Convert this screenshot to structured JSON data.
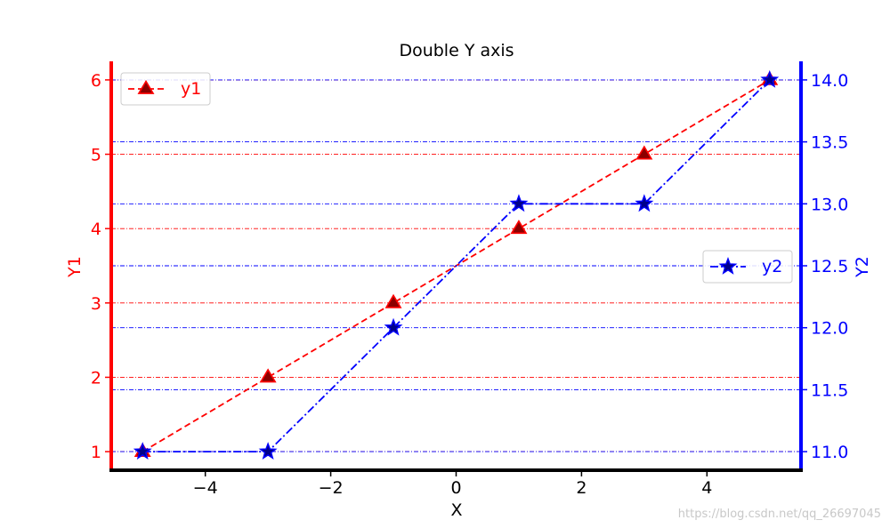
{
  "chart_data": {
    "type": "line",
    "title": "Double Y axis",
    "xlabel": "X",
    "ylabel_left": "Y1",
    "ylabel_right": "Y2",
    "xlim": [
      -5.5,
      5.5
    ],
    "ylim_left": [
      0.75,
      6.25
    ],
    "ylim_right": [
      10.85,
      14.15
    ],
    "x_ticks": [
      -4,
      -2,
      0,
      2,
      4
    ],
    "x_tick_labels": [
      "−4",
      "−2",
      "0",
      "2",
      "4"
    ],
    "y_left_ticks": [
      1,
      2,
      3,
      4,
      5,
      6
    ],
    "y_left_tick_labels": [
      "1",
      "2",
      "3",
      "4",
      "5",
      "6"
    ],
    "y_right_ticks": [
      11.0,
      11.5,
      12.0,
      12.5,
      13.0,
      13.5,
      14.0
    ],
    "y_right_tick_labels": [
      "11.0",
      "11.5",
      "12.0",
      "12.5",
      "13.0",
      "13.5",
      "14.0"
    ],
    "grid": true,
    "x": [
      -5,
      -3,
      -1,
      1,
      3,
      5
    ],
    "series": [
      {
        "name": "y1",
        "axis": "left",
        "values": [
          1,
          2,
          3,
          4,
          5,
          6
        ],
        "color": "#ff0000",
        "marker": "triangle",
        "marker_fill": "#8b0000",
        "line_style": "dashed",
        "legend_position": "upper-left"
      },
      {
        "name": "y2",
        "axis": "right",
        "values": [
          11,
          11,
          12,
          13,
          13,
          14
        ],
        "color": "#0000ff",
        "marker": "star",
        "marker_fill": "#00008b",
        "line_style": "dashdot",
        "legend_position": "center-right"
      }
    ]
  },
  "watermark": "https://blog.csdn.net/qq_26697045"
}
